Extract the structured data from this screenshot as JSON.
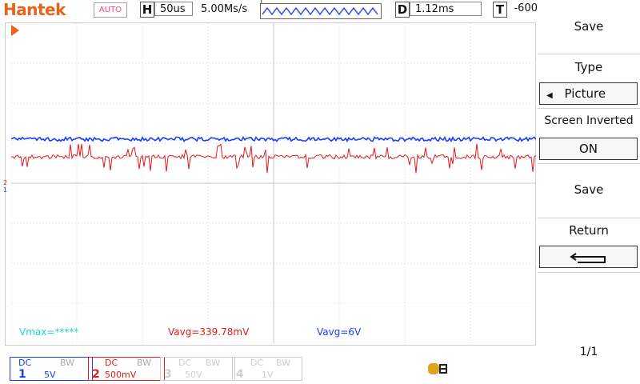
{
  "topbar": {
    "brand": "Hantek",
    "mode": "AUTO",
    "horizontal_letter": "H",
    "timebase": "50us",
    "sample_rate": "5.00Ms/s",
    "trigger_marker": "T",
    "delay_letter": "D",
    "delay_value": "1.12ms",
    "trigger_letter": "T",
    "trigger_value": "-600"
  },
  "measurements": {
    "ch_vmax": "Vmax=*****",
    "ch2_vavg": "Vavg=339.78mV",
    "ch1_vavg": "Vavg=6V"
  },
  "channels": [
    {
      "num": "1",
      "coupling": "DC",
      "bw": "BW",
      "scale": "5V",
      "color": "#1a3cff",
      "active": true
    },
    {
      "num": "2",
      "coupling": "DC",
      "bw": "BW",
      "scale": "500mV",
      "color": "#e01a1a",
      "active": true
    },
    {
      "num": "3",
      "coupling": "DC",
      "bw": "BW",
      "scale": "50V",
      "color": "#cfcfcf",
      "active": false
    },
    {
      "num": "4",
      "coupling": "DC",
      "bw": "BW",
      "scale": "1V",
      "color": "#cfcfcf",
      "active": false
    }
  ],
  "menu": {
    "title": "Save",
    "type_label": "Type",
    "type_value": "Picture",
    "screen_inverted_label": "Screen Inverted",
    "screen_inverted_value": "ON",
    "save_label": "Save",
    "return_label": "Return",
    "page": "1/1"
  },
  "colors": {
    "brand": "#e8641a",
    "ch1": "#1a3cff",
    "ch2": "#e01a1a",
    "meas_cyan": "#22d4d4",
    "auto": "#ff3c8c",
    "usb": "#e0a020"
  },
  "icons": {
    "trigger_level": "triangle-right-icon",
    "return": "return-arrow-icon",
    "usb": "usb-drive-icon",
    "arrow_left": "arrow-left-icon"
  }
}
